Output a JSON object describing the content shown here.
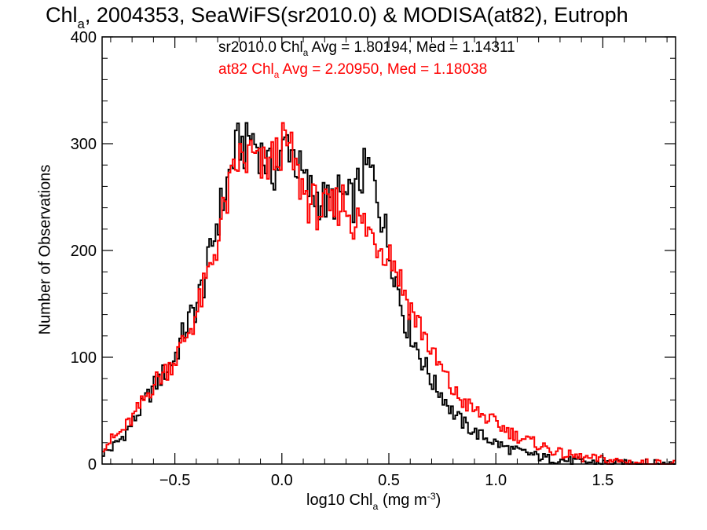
{
  "title": {
    "chl": "Chl",
    "chl_sub": "a",
    "rest": ", 2004353, SeaWiFS(sr2010.0) & MODISA(at82), Eutroph"
  },
  "stats": [
    {
      "prefix": "sr2010.0 Chl",
      "sub": "a",
      "suffix": " Avg = 1.80194, Med = 1.14311",
      "color": "#000000"
    },
    {
      "prefix": "at82 Chl",
      "sub": "a",
      "suffix": " Avg = 2.20950, Med = 1.18038",
      "color": "#ff0000"
    }
  ],
  "axes": {
    "xlabel_a": "log10 Chl",
    "xlabel_sub": "a",
    "xlabel_b": " (mg m",
    "xlabel_sup": "-3",
    "xlabel_c": ")",
    "ylabel": "Number of Observations"
  },
  "chart_data": {
    "type": "line",
    "xlim": [
      -0.84,
      1.84
    ],
    "ylim": [
      0,
      400
    ],
    "x_ticks": [
      -0.5,
      0.0,
      0.5,
      1.0,
      1.5
    ],
    "x_tick_labels": [
      "−0.5",
      "0.0",
      "0.5",
      "1.0",
      "1.5"
    ],
    "y_ticks": [
      0,
      100,
      200,
      300,
      400
    ],
    "y_tick_labels": [
      "0",
      "100",
      "200",
      "300",
      "400"
    ],
    "grid": false,
    "series": [
      {
        "name": "sr2010.0",
        "color": "#000000",
        "points": [
          [
            -0.84,
            10
          ],
          [
            -0.8,
            14
          ],
          [
            -0.75,
            24
          ],
          [
            -0.7,
            38
          ],
          [
            -0.65,
            55
          ],
          [
            -0.6,
            72
          ],
          [
            -0.55,
            85
          ],
          [
            -0.5,
            100
          ],
          [
            -0.45,
            128
          ],
          [
            -0.4,
            148
          ],
          [
            -0.35,
            180
          ],
          [
            -0.3,
            230
          ],
          [
            -0.27,
            250
          ],
          [
            -0.25,
            268
          ],
          [
            -0.22,
            290
          ],
          [
            -0.2,
            302
          ],
          [
            -0.17,
            294
          ],
          [
            -0.15,
            310
          ],
          [
            -0.12,
            300
          ],
          [
            -0.1,
            292
          ],
          [
            -0.07,
            282
          ],
          [
            -0.05,
            272
          ],
          [
            -0.02,
            278
          ],
          [
            0.0,
            288
          ],
          [
            0.02,
            305
          ],
          [
            0.05,
            294
          ],
          [
            0.07,
            280
          ],
          [
            0.1,
            268
          ],
          [
            0.12,
            258
          ],
          [
            0.15,
            252
          ],
          [
            0.17,
            250
          ],
          [
            0.2,
            246
          ],
          [
            0.22,
            242
          ],
          [
            0.25,
            250
          ],
          [
            0.28,
            252
          ],
          [
            0.3,
            248
          ],
          [
            0.33,
            244
          ],
          [
            0.36,
            262
          ],
          [
            0.38,
            272
          ],
          [
            0.4,
            278
          ],
          [
            0.42,
            272
          ],
          [
            0.44,
            258
          ],
          [
            0.46,
            240
          ],
          [
            0.48,
            222
          ],
          [
            0.5,
            202
          ],
          [
            0.52,
            190
          ],
          [
            0.54,
            168
          ],
          [
            0.56,
            148
          ],
          [
            0.58,
            132
          ],
          [
            0.6,
            125
          ],
          [
            0.62,
            115
          ],
          [
            0.65,
            100
          ],
          [
            0.68,
            88
          ],
          [
            0.7,
            78
          ],
          [
            0.72,
            72
          ],
          [
            0.75,
            65
          ],
          [
            0.78,
            55
          ],
          [
            0.8,
            48
          ],
          [
            0.85,
            38
          ],
          [
            0.9,
            30
          ],
          [
            0.95,
            25
          ],
          [
            1.0,
            20
          ],
          [
            1.05,
            15
          ],
          [
            1.1,
            12
          ],
          [
            1.15,
            10
          ],
          [
            1.2,
            7
          ],
          [
            1.25,
            5
          ],
          [
            1.3,
            4
          ],
          [
            1.4,
            2
          ],
          [
            1.5,
            1
          ],
          [
            1.6,
            0
          ],
          [
            1.84,
            0
          ]
        ]
      },
      {
        "name": "at82",
        "color": "#ff0000",
        "points": [
          [
            -0.84,
            16
          ],
          [
            -0.8,
            22
          ],
          [
            -0.75,
            30
          ],
          [
            -0.7,
            42
          ],
          [
            -0.65,
            58
          ],
          [
            -0.6,
            75
          ],
          [
            -0.55,
            86
          ],
          [
            -0.5,
            98
          ],
          [
            -0.45,
            118
          ],
          [
            -0.4,
            140
          ],
          [
            -0.35,
            172
          ],
          [
            -0.3,
            210
          ],
          [
            -0.27,
            236
          ],
          [
            -0.25,
            252
          ],
          [
            -0.22,
            272
          ],
          [
            -0.2,
            288
          ],
          [
            -0.17,
            280
          ],
          [
            -0.15,
            292
          ],
          [
            -0.12,
            282
          ],
          [
            -0.1,
            276
          ],
          [
            -0.07,
            280
          ],
          [
            -0.05,
            284
          ],
          [
            -0.02,
            290
          ],
          [
            0.0,
            298
          ],
          [
            0.02,
            300
          ],
          [
            0.05,
            288
          ],
          [
            0.07,
            270
          ],
          [
            0.1,
            258
          ],
          [
            0.12,
            248
          ],
          [
            0.15,
            242
          ],
          [
            0.17,
            240
          ],
          [
            0.2,
            236
          ],
          [
            0.22,
            234
          ],
          [
            0.25,
            240
          ],
          [
            0.28,
            248
          ],
          [
            0.3,
            242
          ],
          [
            0.33,
            230
          ],
          [
            0.36,
            226
          ],
          [
            0.38,
            224
          ],
          [
            0.4,
            220
          ],
          [
            0.42,
            214
          ],
          [
            0.44,
            210
          ],
          [
            0.46,
            206
          ],
          [
            0.48,
            204
          ],
          [
            0.5,
            200
          ],
          [
            0.52,
            192
          ],
          [
            0.54,
            182
          ],
          [
            0.56,
            168
          ],
          [
            0.58,
            158
          ],
          [
            0.6,
            148
          ],
          [
            0.62,
            138
          ],
          [
            0.65,
            128
          ],
          [
            0.68,
            116
          ],
          [
            0.7,
            104
          ],
          [
            0.72,
            96
          ],
          [
            0.75,
            88
          ],
          [
            0.78,
            76
          ],
          [
            0.8,
            68
          ],
          [
            0.85,
            58
          ],
          [
            0.9,
            50
          ],
          [
            0.95,
            44
          ],
          [
            1.0,
            38
          ],
          [
            1.05,
            32
          ],
          [
            1.1,
            26
          ],
          [
            1.15,
            22
          ],
          [
            1.2,
            18
          ],
          [
            1.25,
            14
          ],
          [
            1.3,
            10
          ],
          [
            1.4,
            6
          ],
          [
            1.5,
            4
          ],
          [
            1.6,
            2
          ],
          [
            1.7,
            1
          ],
          [
            1.84,
            0
          ]
        ]
      }
    ]
  }
}
